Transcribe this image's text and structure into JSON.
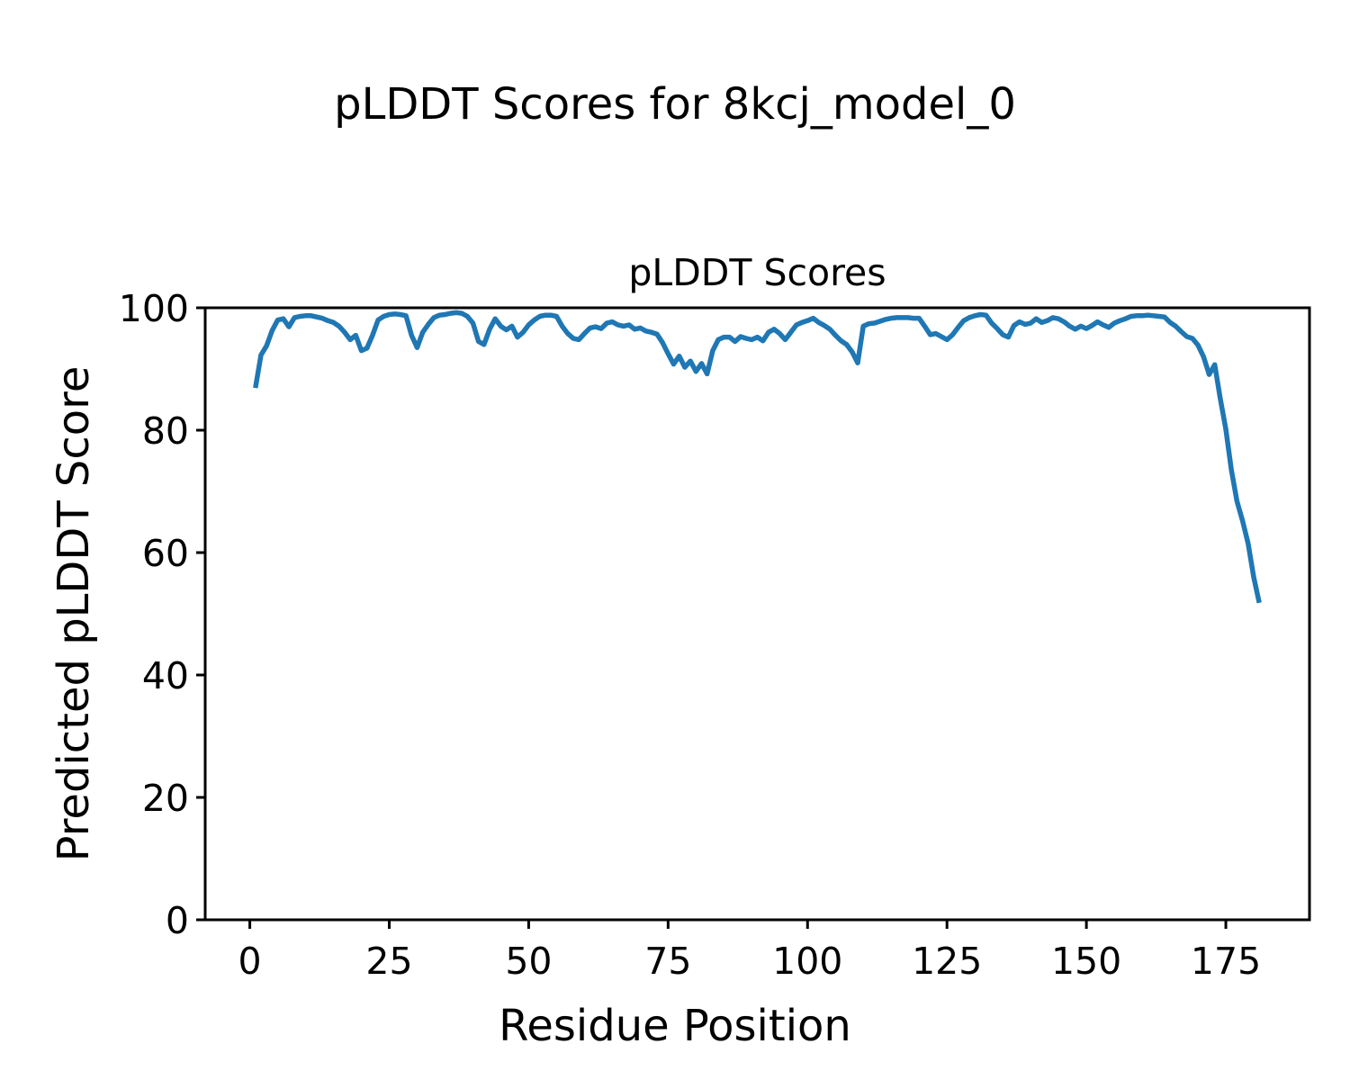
{
  "figure": {
    "suptitle": "pLDDT Scores for 8kcj_model_0",
    "background": "#ffffff"
  },
  "chart_data": {
    "type": "line",
    "title": "pLDDT Scores",
    "xlabel": "Residue Position",
    "ylabel": "Predicted pLDDT Score",
    "xlim": [
      -8,
      190
    ],
    "ylim": [
      0,
      100
    ],
    "xticks": [
      0,
      25,
      50,
      75,
      100,
      125,
      150,
      175
    ],
    "yticks": [
      0,
      20,
      40,
      60,
      80,
      100
    ],
    "grid": false,
    "legend": "none",
    "line_color": "#1f77b4",
    "axis_color": "#000000",
    "x_start": 1,
    "x_step": 1,
    "series": [
      {
        "name": "pLDDT",
        "values": [
          86.9,
          92.3,
          93.8,
          96.3,
          98.0,
          98.2,
          96.9,
          98.4,
          98.6,
          98.7,
          98.7,
          98.5,
          98.3,
          97.9,
          97.6,
          97.0,
          96.0,
          94.8,
          95.5,
          93.0,
          93.4,
          95.5,
          98.0,
          98.6,
          98.9,
          99.0,
          98.9,
          98.7,
          95.5,
          93.5,
          96.0,
          97.3,
          98.4,
          98.8,
          98.9,
          99.1,
          99.2,
          99.1,
          98.6,
          97.5,
          94.5,
          94.0,
          96.5,
          98.2,
          97.0,
          96.4,
          97.0,
          95.2,
          96.0,
          97.2,
          98.0,
          98.6,
          98.8,
          98.8,
          98.6,
          97.0,
          95.8,
          95.0,
          94.8,
          95.8,
          96.7,
          96.9,
          96.6,
          97.5,
          97.7,
          97.2,
          97.0,
          97.2,
          96.5,
          96.7,
          96.2,
          96.0,
          95.7,
          94.3,
          92.5,
          90.8,
          92.1,
          90.3,
          91.3,
          89.6,
          90.9,
          89.2,
          93.0,
          94.8,
          95.2,
          95.2,
          94.5,
          95.3,
          95.0,
          94.8,
          95.2,
          94.6,
          96.0,
          96.5,
          95.8,
          94.8,
          96.0,
          97.2,
          97.6,
          97.9,
          98.3,
          97.6,
          97.1,
          96.5,
          95.5,
          94.6,
          94.0,
          92.8,
          91.0,
          97.0,
          97.4,
          97.5,
          97.8,
          98.1,
          98.3,
          98.4,
          98.4,
          98.4,
          98.3,
          98.3,
          97.0,
          95.6,
          95.8,
          95.3,
          94.8,
          95.6,
          96.8,
          97.9,
          98.4,
          98.7,
          98.9,
          98.8,
          97.5,
          96.6,
          95.6,
          95.2,
          97.1,
          97.7,
          97.3,
          97.5,
          98.2,
          97.6,
          97.9,
          98.4,
          98.2,
          97.7,
          97.0,
          96.5,
          97.0,
          96.6,
          97.1,
          97.7,
          97.2,
          96.8,
          97.5,
          97.9,
          98.2,
          98.6,
          98.7,
          98.7,
          98.8,
          98.7,
          98.6,
          98.5,
          97.6,
          97.0,
          96.1,
          95.3,
          95.0,
          93.9,
          92.0,
          89.1,
          90.7,
          85.2,
          80.2,
          73.5,
          68.4,
          65.2,
          61.5,
          56.0,
          51.8
        ]
      }
    ]
  }
}
